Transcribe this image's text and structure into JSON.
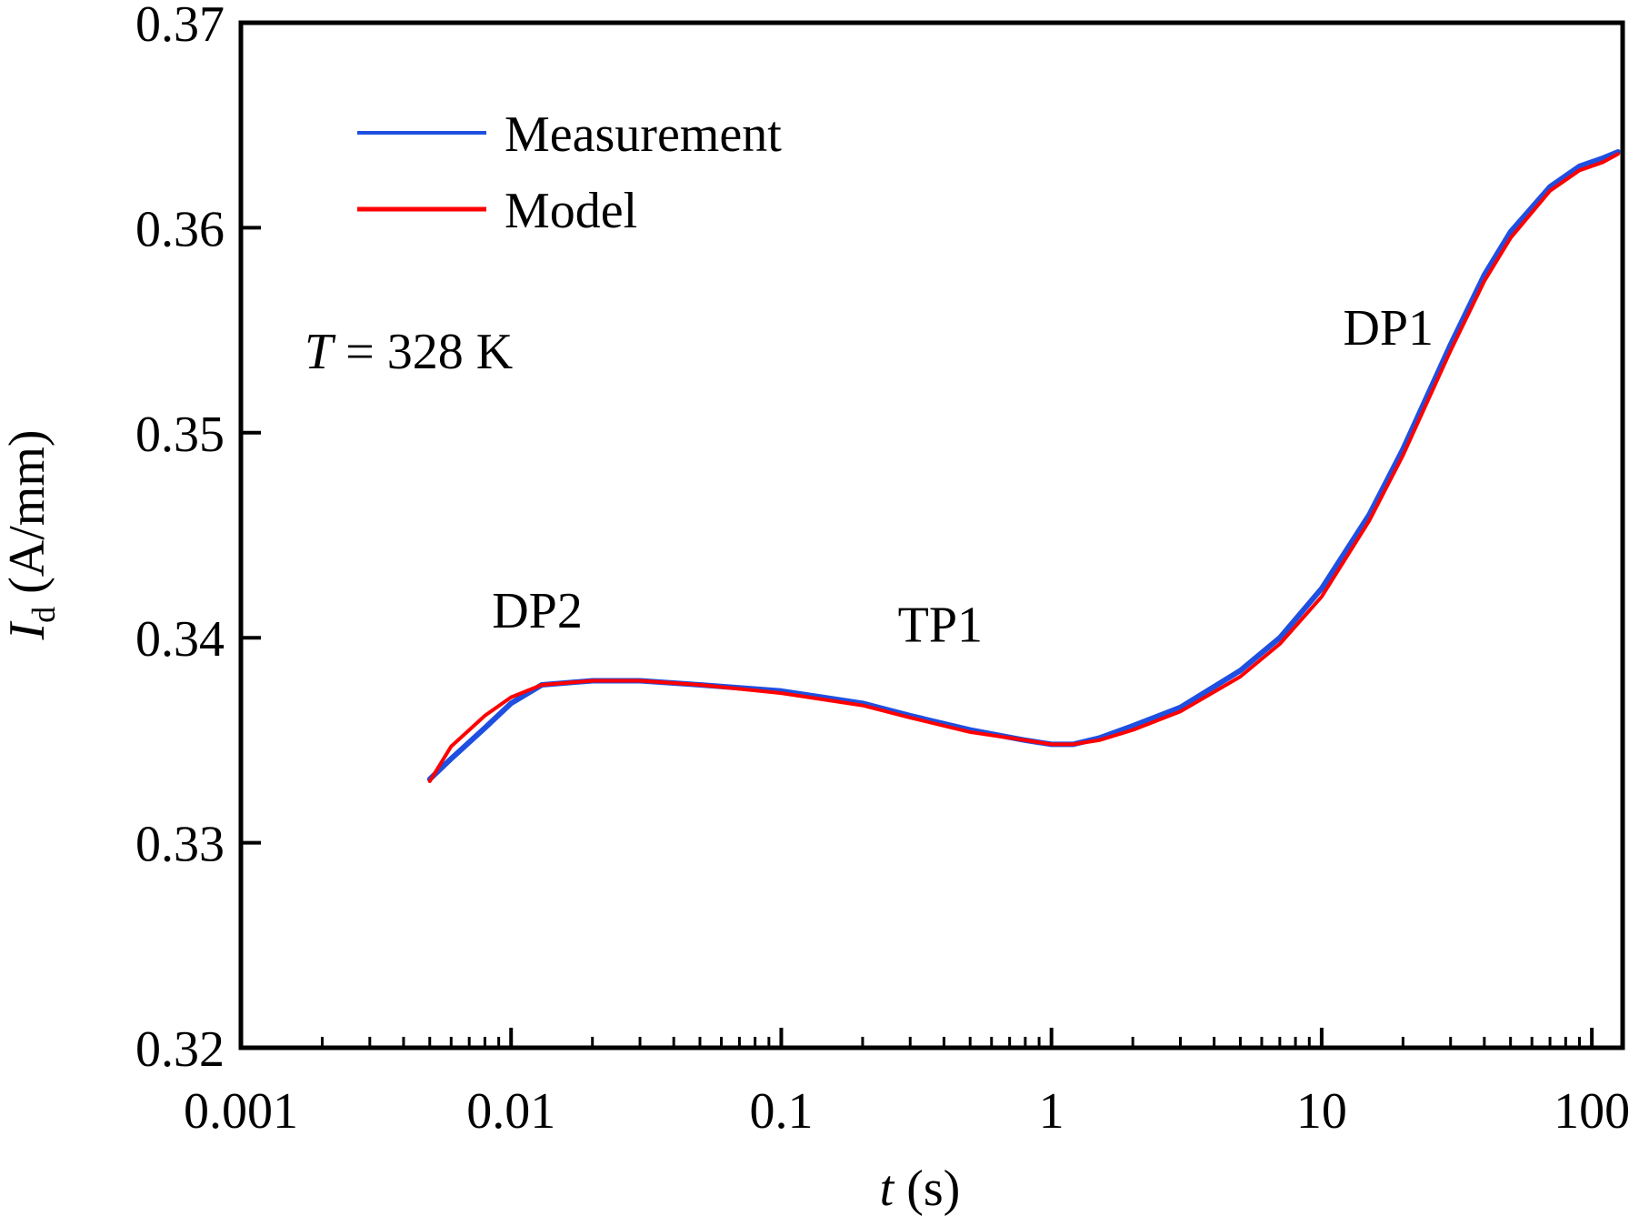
{
  "chart_data": {
    "type": "line",
    "xlabel": {
      "var": "t",
      "unit": "(s)"
    },
    "ylabel": {
      "var": "I",
      "sub": "d",
      "unit": "(A/mm)"
    },
    "xscale": "log",
    "xlim": [
      0.001,
      130
    ],
    "ylim": [
      0.32,
      0.37
    ],
    "xticks": [
      0.001,
      0.01,
      0.1,
      1,
      10,
      100
    ],
    "xtick_labels": [
      "0.001",
      "0.01",
      "0.1",
      "1",
      "10",
      "100"
    ],
    "yticks": [
      0.32,
      0.33,
      0.34,
      0.35,
      0.36,
      0.37
    ],
    "ytick_labels": [
      "0.32",
      "0.33",
      "0.34",
      "0.35",
      "0.36",
      "0.37"
    ],
    "grid": false,
    "legend": {
      "placement": "top-left"
    },
    "series": [
      {
        "name": "Measurement",
        "color": "#1f4fe0",
        "x": [
          0.005,
          0.006,
          0.008,
          0.01,
          0.013,
          0.02,
          0.03,
          0.05,
          0.1,
          0.2,
          0.3,
          0.5,
          0.8,
          1.0,
          1.2,
          1.5,
          2,
          3,
          5,
          7,
          10,
          15,
          20,
          30,
          40,
          50,
          70,
          90,
          110,
          125
        ],
        "y": [
          0.3331,
          0.3341,
          0.3356,
          0.3368,
          0.3377,
          0.3379,
          0.3379,
          0.3377,
          0.3374,
          0.3368,
          0.3362,
          0.3355,
          0.335,
          0.3348,
          0.3348,
          0.3351,
          0.3357,
          0.3366,
          0.3384,
          0.34,
          0.3424,
          0.346,
          0.3492,
          0.3543,
          0.3577,
          0.3598,
          0.362,
          0.363,
          0.3634,
          0.3637
        ]
      },
      {
        "name": "Model",
        "color": "#ff0000",
        "x": [
          0.005,
          0.006,
          0.008,
          0.01,
          0.013,
          0.02,
          0.03,
          0.05,
          0.1,
          0.2,
          0.3,
          0.5,
          0.8,
          1.0,
          1.2,
          1.5,
          2,
          3,
          5,
          7,
          10,
          15,
          20,
          30,
          40,
          50,
          70,
          90,
          110,
          125
        ],
        "y": [
          0.333,
          0.3347,
          0.3362,
          0.3371,
          0.3377,
          0.3379,
          0.3379,
          0.3377,
          0.3373,
          0.3367,
          0.3361,
          0.3354,
          0.335,
          0.3348,
          0.3348,
          0.335,
          0.3355,
          0.3364,
          0.3381,
          0.3397,
          0.342,
          0.3457,
          0.3489,
          0.354,
          0.3574,
          0.3595,
          0.3618,
          0.3628,
          0.3632,
          0.3636
        ]
      }
    ],
    "annotations": [
      {
        "text": "DP2",
        "x": 0.0085,
        "y": 0.3405
      },
      {
        "text": "TP1",
        "x": 0.27,
        "y": 0.3398
      },
      {
        "text": "DP1",
        "x": 12,
        "y": 0.3543
      }
    ],
    "temperature_label": {
      "var": "T",
      "rest": " = 328 K"
    }
  }
}
